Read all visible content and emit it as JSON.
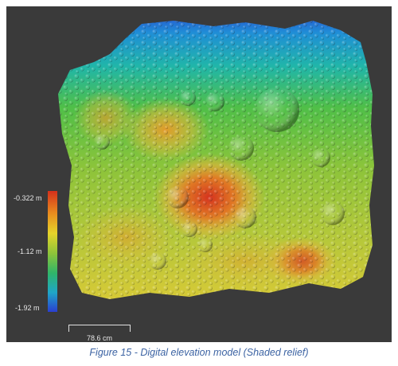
{
  "viewer": {
    "colorbar": {
      "max_label": "-0.322 m",
      "mid_label": "-1.12 m",
      "min_label": "-1.92 m",
      "colors": [
        "#d4301c",
        "#e88a1e",
        "#e6d42a",
        "#8cc43a",
        "#2fb56a",
        "#1fa6c8",
        "#2a3fd0"
      ]
    },
    "scalebar": {
      "label": "78.6 cm"
    },
    "background_color": "#3a3a3a"
  },
  "caption": {
    "text": "Figure 15 - Digital elevation model (Shaded relief)"
  }
}
